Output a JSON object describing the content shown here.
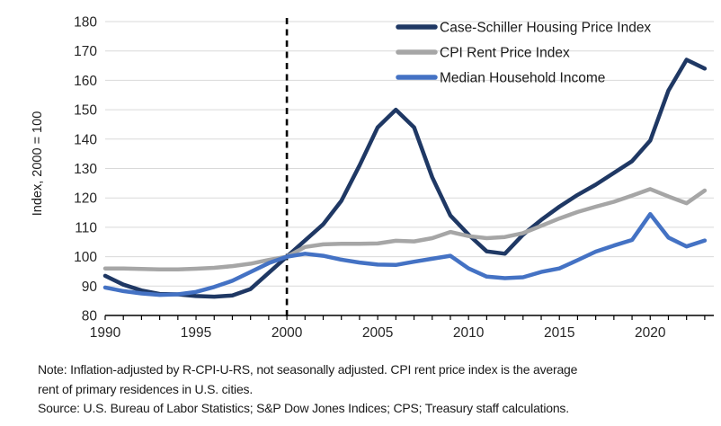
{
  "chart_data": {
    "type": "line",
    "title": "",
    "xlabel": "",
    "ylabel": "Index, 2000 = 100",
    "ylim": [
      80,
      180
    ],
    "ytick_step": 10,
    "xlim": [
      1990,
      2023.5
    ],
    "xticks_labeled": [
      1990,
      1995,
      2000,
      2005,
      2010,
      2015,
      2020
    ],
    "minor_xticks_every_year": true,
    "grid": "horizontal-only",
    "grid_color": "#d9d9d9",
    "axis_color": "#000000",
    "text_color": "#262626",
    "reference_line": {
      "x": 2000,
      "style": "dashed",
      "color": "#000000"
    },
    "legend_position": "top-right-inside",
    "x": [
      1990,
      1991,
      1992,
      1993,
      1994,
      1995,
      1996,
      1997,
      1998,
      1999,
      2000,
      2001,
      2002,
      2003,
      2004,
      2005,
      2006,
      2007,
      2008,
      2009,
      2010,
      2011,
      2012,
      2013,
      2014,
      2015,
      2016,
      2017,
      2018,
      2019,
      2020,
      2021,
      2022,
      2023
    ],
    "series": [
      {
        "name": "Case-Schiller Housing Price Index",
        "color": "#1F3864",
        "stroke_width": 4.5,
        "values": [
          93.5,
          90.5,
          88.5,
          87.3,
          87.2,
          86.6,
          86.4,
          86.8,
          89,
          94.5,
          100,
          105.5,
          111,
          119,
          131,
          144,
          150,
          144,
          127,
          114,
          107.5,
          101.8,
          101,
          107.5,
          112.5,
          117,
          121,
          124.5,
          128.5,
          132.5,
          139.5,
          156.5,
          167,
          164
        ]
      },
      {
        "name": "CPI Rent Price Index",
        "color": "#A6A6A6",
        "stroke_width": 4.5,
        "values": [
          96,
          96,
          95.8,
          95.7,
          95.7,
          95.9,
          96.2,
          96.8,
          97.6,
          98.9,
          100,
          103.3,
          104.2,
          104.4,
          104.4,
          104.5,
          105.4,
          105.2,
          106.3,
          108.4,
          107,
          106.3,
          106.7,
          108,
          110.5,
          113,
          115.2,
          117,
          118.7,
          120.8,
          123,
          120.5,
          118.2,
          122.5
        ]
      },
      {
        "name": "Median Household Income",
        "color": "#4472C4",
        "stroke_width": 4.5,
        "values": [
          89.5,
          88.3,
          87.5,
          87,
          87.2,
          88,
          89.7,
          91.8,
          94.8,
          97.8,
          100,
          101,
          100.3,
          99,
          98,
          97.3,
          97.2,
          98.3,
          99.3,
          100.3,
          96,
          93.2,
          92.7,
          93,
          94.8,
          96,
          98.8,
          101.7,
          103.8,
          105.7,
          114.5,
          106.5,
          103.5,
          105.5
        ]
      }
    ]
  },
  "notes": {
    "line1": "Note: Inflation-adjusted by R-CPI-U-RS, not seasonally adjusted. CPI rent price index is the average",
    "line2": "rent of primary residences in U.S. cities.",
    "line3": "Source: U.S. Bureau of Labor Statistics; S&P Dow Jones Indices; CPS; Treasury staff calculations."
  }
}
